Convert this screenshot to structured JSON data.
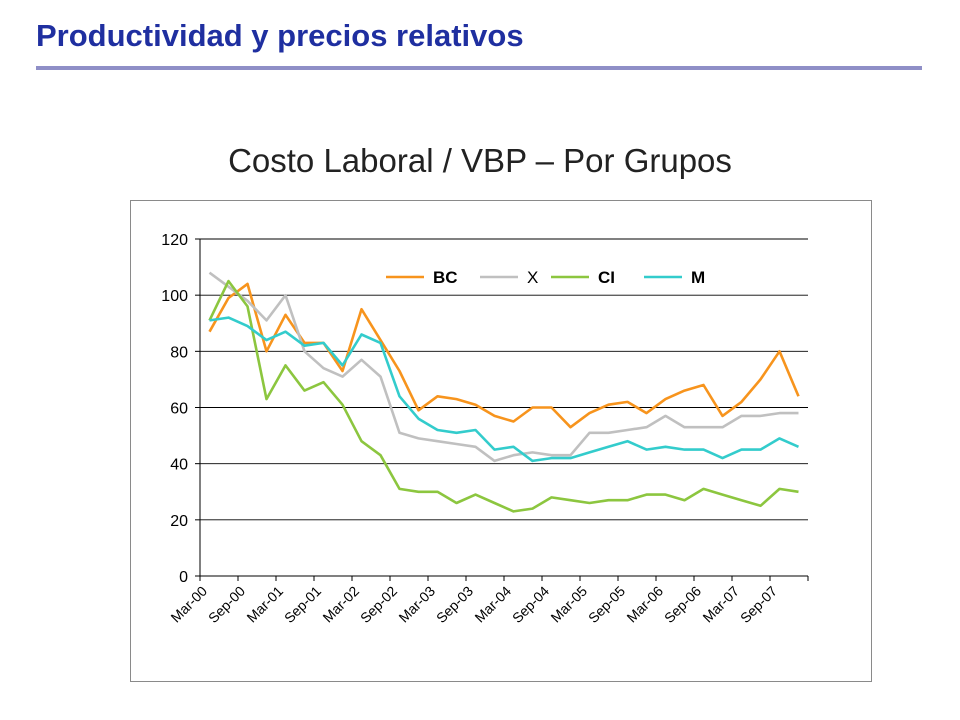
{
  "slide": {
    "title": "Productividad y precios relativos"
  },
  "colors": {
    "title": "#1f2fa0",
    "rule": "#8f8fc7"
  },
  "chart_data": {
    "type": "line",
    "title": "Costo Laboral / VBP – Por Grupos",
    "xlabel": "",
    "ylabel": "",
    "ylim": [
      0,
      120
    ],
    "yticks": [
      0,
      20,
      40,
      60,
      80,
      100,
      120
    ],
    "grid": true,
    "legend_position": "top",
    "x_tick_labels": [
      "Mar-00",
      "Sep-00",
      "Mar-01",
      "Sep-01",
      "Mar-02",
      "Sep-02",
      "Mar-03",
      "Sep-03",
      "Mar-04",
      "Sep-04",
      "Mar-05",
      "Sep-05",
      "Mar-06",
      "Sep-06",
      "Mar-07",
      "Sep-07"
    ],
    "x": [
      "Mar-00",
      "Jun-00",
      "Sep-00",
      "Dec-00",
      "Mar-01",
      "Jun-01",
      "Sep-01",
      "Dec-01",
      "Mar-02",
      "Jun-02",
      "Sep-02",
      "Dec-02",
      "Mar-03",
      "Jun-03",
      "Sep-03",
      "Dec-03",
      "Mar-04",
      "Jun-04",
      "Sep-04",
      "Dec-04",
      "Mar-05",
      "Jun-05",
      "Sep-05",
      "Dec-05",
      "Mar-06",
      "Jun-06",
      "Sep-06",
      "Dec-06",
      "Mar-07",
      "Jun-07",
      "Sep-07",
      "Dec-07"
    ],
    "series": [
      {
        "name": "BC",
        "color": "#f7941d",
        "values": [
          87,
          99,
          104,
          80,
          93,
          83,
          83,
          73,
          95,
          84,
          73,
          59,
          64,
          63,
          61,
          57,
          55,
          60,
          60,
          53,
          58,
          61,
          62,
          58,
          63,
          66,
          68,
          57,
          62,
          70,
          80,
          64
        ]
      },
      {
        "name": "X",
        "color": "#c0c0c0",
        "values": [
          108,
          103,
          98,
          91,
          100,
          80,
          74,
          71,
          77,
          71,
          51,
          49,
          48,
          47,
          46,
          41,
          43,
          44,
          43,
          43,
          51,
          51,
          52,
          53,
          57,
          53,
          53,
          53,
          57,
          57,
          58,
          58
        ]
      },
      {
        "name": "CI",
        "color": "#8cc63f",
        "values": [
          91,
          105,
          96,
          63,
          75,
          66,
          69,
          61,
          48,
          43,
          31,
          30,
          30,
          26,
          29,
          26,
          23,
          24,
          28,
          27,
          26,
          27,
          27,
          29,
          29,
          27,
          31,
          29,
          27,
          25,
          31,
          30
        ]
      },
      {
        "name": "M",
        "color": "#33cccc",
        "values": [
          91,
          92,
          89,
          84,
          87,
          82,
          83,
          75,
          86,
          83,
          64,
          56,
          52,
          51,
          52,
          45,
          46,
          41,
          42,
          42,
          44,
          46,
          48,
          45,
          46,
          45,
          45,
          42,
          45,
          45,
          49,
          46
        ]
      }
    ]
  }
}
